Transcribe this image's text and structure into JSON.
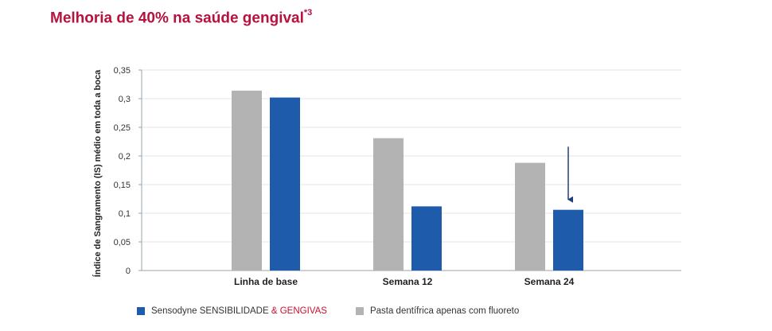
{
  "title": {
    "text": "Melhoria de 40% na saúde gengival",
    "superscript": "*3"
  },
  "chart_data": {
    "type": "bar",
    "title": "Melhoria de 40% na saúde gengival*3",
    "xlabel": "",
    "ylabel": "Índice de Sangramento (IS) médio em toda a boca",
    "ylim": [
      0,
      0.35
    ],
    "yticks": [
      0,
      0.05,
      0.1,
      0.15,
      0.2,
      0.25,
      0.3,
      0.35
    ],
    "ytick_labels": [
      "0",
      "0,05",
      "0,1",
      "0,15",
      "0,2",
      "0,25",
      "0,3",
      "0,35"
    ],
    "grid": true,
    "legend_position": "bottom",
    "categories": [
      "Linha de base",
      "Semana 12",
      "Semana 24"
    ],
    "series": [
      {
        "name": "Pasta dentífrica apenas com fluoreto",
        "color": "#b3b3b3",
        "values": [
          0.314,
          0.231,
          0.188
        ]
      },
      {
        "name": "Sensodyne SENSIBILIDADE & GENGIVAS",
        "color": "#1f5bab",
        "values": [
          0.302,
          0.112,
          0.106
        ]
      }
    ],
    "annotations": [
      {
        "type": "arrow-down",
        "category": "Semana 24",
        "from": 0.18,
        "to": 0.11,
        "color": "#1f3f78"
      }
    ]
  },
  "legend": [
    {
      "label_main": "Sensodyne SENSIBILIDADE ",
      "label_accent": "& GENGIVAS",
      "color": "#1f5bab"
    },
    {
      "label_main": "Pasta dentífrica apenas com fluoreto",
      "label_accent": "",
      "color": "#b3b3b3"
    }
  ]
}
